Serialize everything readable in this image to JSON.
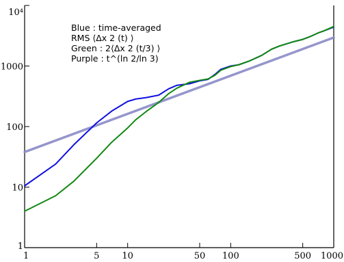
{
  "chart_data": {
    "type": "line",
    "title": "",
    "xlabel": "",
    "ylabel": "",
    "x_scale": "log",
    "y_scale": "log",
    "xlim": [
      1,
      1000
    ],
    "ylim": [
      1,
      10000
    ],
    "grid": false,
    "legend_position": "top-left",
    "legend_lines": [
      "Blue : time-averaged",
      "RMS ⟨Δx 2 (t) ⟩",
      "Green : 2⟨Δx 2 (t/3) ⟩",
      "Purple : t^(ln 2/ln 3)"
    ],
    "x_ticks": [
      1,
      5,
      10,
      50,
      100,
      500,
      1000
    ],
    "x_tick_labels": [
      "1",
      "5",
      "10",
      "50",
      "100",
      "500",
      "1000"
    ],
    "y_ticks": [
      1,
      10,
      100,
      1000,
      10000
    ],
    "y_tick_labels": [
      "1",
      "10",
      "100",
      "1000",
      "10⁴"
    ],
    "series": [
      {
        "color": "#1010e0",
        "x": [
          1,
          2,
          3,
          5,
          7,
          10,
          12,
          15,
          20,
          25,
          30,
          40,
          50,
          60,
          70,
          80,
          100,
          120,
          150,
          200,
          250,
          300,
          400,
          500,
          600,
          700,
          800,
          1000
        ],
        "y": [
          10.5,
          24,
          50,
          115,
          180,
          260,
          285,
          300,
          330,
          420,
          480,
          510,
          570,
          600,
          720,
          880,
          1000,
          1050,
          1200,
          1500,
          1900,
          2150,
          2500,
          2750,
          3100,
          3500,
          3800,
          4400
        ]
      },
      {
        "color": "#118811",
        "x": [
          1,
          2,
          3,
          5,
          7,
          10,
          12,
          15,
          20,
          25,
          30,
          40,
          50,
          60,
          70,
          80,
          100,
          120,
          150,
          200,
          250,
          300,
          400,
          500,
          600,
          700,
          800,
          1000
        ],
        "y": [
          4,
          7.2,
          12.5,
          30,
          55,
          95,
          130,
          175,
          250,
          350,
          430,
          540,
          580,
          610,
          700,
          850,
          980,
          1050,
          1200,
          1500,
          1900,
          2150,
          2500,
          2750,
          3100,
          3500,
          3800,
          4500
        ]
      },
      {
        "color": "#8a8ac8",
        "x": [
          1,
          1000
        ],
        "y": [
          38,
          2950
        ]
      }
    ]
  }
}
